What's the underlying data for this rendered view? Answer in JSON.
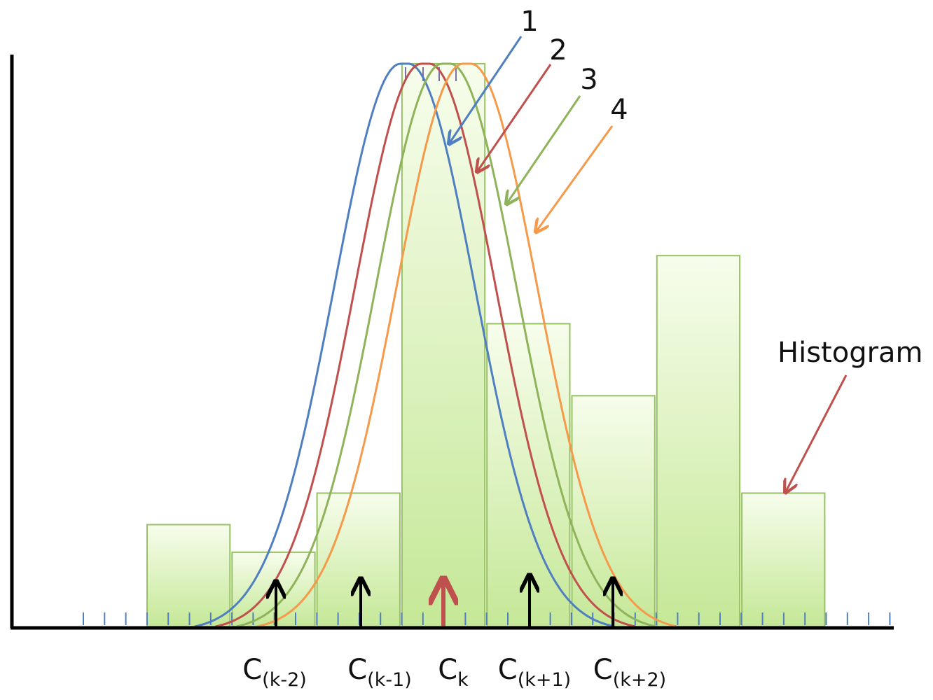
{
  "bars": [
    {
      "id": "bar-1",
      "value": 0.181
    },
    {
      "id": "bar-2",
      "value": 0.132
    },
    {
      "id": "bar-3",
      "value": 0.237
    },
    {
      "id": "bar-4",
      "value": 1.0
    },
    {
      "id": "bar-5",
      "value": 0.538
    },
    {
      "id": "bar-6",
      "value": 0.41
    },
    {
      "id": "bar-7",
      "value": 0.659
    },
    {
      "id": "bar-8",
      "value": 0.237
    }
  ],
  "curves": [
    {
      "label": "1",
      "color": "#4f7fc0",
      "center": 0.0
    },
    {
      "label": "2",
      "color": "#c0504d",
      "center": 0.25
    },
    {
      "label": "3",
      "color": "#8fb35a",
      "center": 0.5
    },
    {
      "label": "4",
      "color": "#f59a4b",
      "center": 0.75
    }
  ],
  "centers": [
    {
      "main": "C",
      "sub": "(k-2)"
    },
    {
      "main": "C",
      "sub": "(k-1)"
    },
    {
      "main": "C",
      "sub": "k"
    },
    {
      "main": "C",
      "sub": "(k+1)"
    },
    {
      "main": "C",
      "sub": "(k+2)"
    }
  ],
  "histogram_label": "Histogram",
  "colors": {
    "bar_fill_top": "#f7fdec",
    "bar_fill_bottom": "#c5e897",
    "bar_stroke": "#97c164",
    "axis": "#000000",
    "tick": "#4f7fc0",
    "center_arrow": "#000000",
    "center_arrow_highlight": "#c0504d",
    "histogram_arrow": "#c0504d"
  }
}
